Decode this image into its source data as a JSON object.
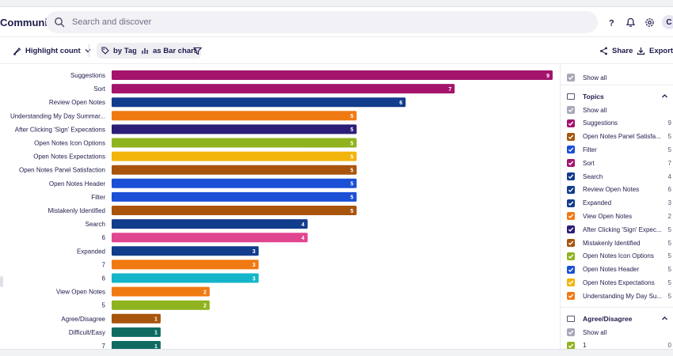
{
  "app": {
    "brand": "Community"
  },
  "search": {
    "placeholder": "Search and discover"
  },
  "user": {
    "initial": "C"
  },
  "toolbar": {
    "highlight_label": "Highlight count",
    "tag_label": "by Tag",
    "chart_label": "as Bar chart",
    "share_label": "Share",
    "export_label": "Export"
  },
  "chart_data": {
    "type": "bar",
    "orientation": "horizontal",
    "categories": [
      "Suggestions",
      "Sort",
      "Review Open Notes",
      "Understanding My Day Summar...",
      "After Clicking 'Sign' Expecations",
      "Open Notes Icon Options",
      "Open Notes Expectations",
      "Open Notes Panel Satisfaction",
      "Open Notes Header",
      "Filter",
      "Mistakenly Identified",
      "Search",
      "6",
      "Expanded",
      "7",
      "6",
      "View Open Notes",
      "5",
      "Agree/Disagree",
      "Difficult/Easy",
      "7"
    ],
    "values": [
      9,
      7,
      6,
      5,
      5,
      5,
      5,
      5,
      5,
      5,
      5,
      4,
      4,
      3,
      3,
      3,
      2,
      2,
      1,
      1,
      1
    ],
    "colors": [
      "#a4146d",
      "#a4146d",
      "#123c8c",
      "#f07a12",
      "#2a1e78",
      "#8fb31e",
      "#f2b40d",
      "#a8540d",
      "#1a4fd6",
      "#1a4fd6",
      "#a8540d",
      "#123c8c",
      "#e2458f",
      "#123c8c",
      "#f07a12",
      "#14b5c8",
      "#f07a12",
      "#8fb31e",
      "#a8540d",
      "#0f6b62",
      "#0f6b62"
    ],
    "xlim": [
      0,
      9
    ]
  },
  "legend": {
    "show_all_label": "Show all",
    "groups": [
      {
        "title": "Topics",
        "show_all_label": "Show all",
        "items": [
          {
            "label": "Suggestions",
            "count": "9",
            "color": "#a4146d"
          },
          {
            "label": "Open Notes Panel Satisfa...",
            "count": "5",
            "color": "#a8540d"
          },
          {
            "label": "Filter",
            "count": "5",
            "color": "#1a4fd6"
          },
          {
            "label": "Sort",
            "count": "7",
            "color": "#a4146d"
          },
          {
            "label": "Search",
            "count": "4",
            "color": "#123c8c"
          },
          {
            "label": "Review Open Notes",
            "count": "6",
            "color": "#123c8c"
          },
          {
            "label": "Expanded",
            "count": "3",
            "color": "#123c8c"
          },
          {
            "label": "View Open Notes",
            "count": "2",
            "color": "#f07a12"
          },
          {
            "label": "After Clicking 'Sign' Expec...",
            "count": "5",
            "color": "#2a1e78"
          },
          {
            "label": "Mistakenly Identified",
            "count": "5",
            "color": "#a8540d"
          },
          {
            "label": "Open Notes Icon Options",
            "count": "5",
            "color": "#8fb31e"
          },
          {
            "label": "Open Notes Header",
            "count": "5",
            "color": "#1a4fd6"
          },
          {
            "label": "Open Notes Expectations",
            "count": "5",
            "color": "#f2b40d"
          },
          {
            "label": "Understanding My Day Su...",
            "count": "5",
            "color": "#f07a12"
          }
        ]
      },
      {
        "title": "Agree/Disagree",
        "show_all_label": "Show all",
        "items": [
          {
            "label": "1",
            "count": "0",
            "color": "#8fb31e"
          }
        ]
      }
    ]
  },
  "colors": {
    "checkbox_all": "#a9a8b8",
    "accent": "#1d1b4b"
  }
}
